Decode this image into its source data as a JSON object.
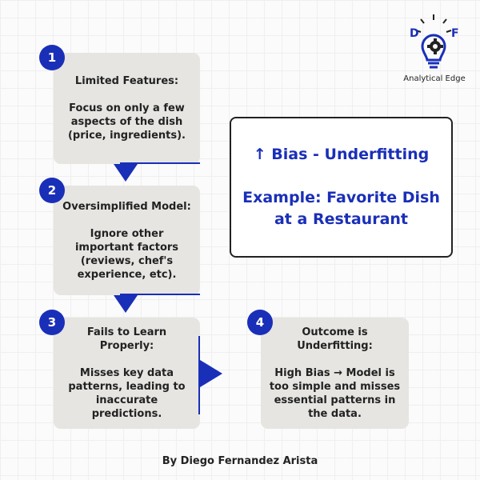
{
  "logo": {
    "letter_left": "D",
    "letter_right": "F",
    "caption": "Analytical Edge"
  },
  "steps": [
    {
      "number": "1",
      "title": "Limited Features:",
      "body": "Focus on only a few aspects of the dish (price, ingredients)."
    },
    {
      "number": "2",
      "title": "Oversimplified Model:",
      "body": "Ignore other important factors (reviews, chef's experience, etc)."
    },
    {
      "number": "3",
      "title": "Fails to Learn Properly:",
      "body": "Misses key data patterns, leading to inaccurate predictions."
    },
    {
      "number": "4",
      "title": "Outcome is Underfitting:",
      "body": "High Bias → Model is too simple and misses essential patterns in the data."
    }
  ],
  "callout": {
    "heading": "↑ Bias - Underfitting",
    "example": "Example: Favorite Dish at a Restaurant"
  },
  "footer": {
    "author": "By Diego Fernandez Arista"
  },
  "colors": {
    "accent": "#1a2fb8",
    "box": "#e6e5e2",
    "text": "#222222"
  }
}
